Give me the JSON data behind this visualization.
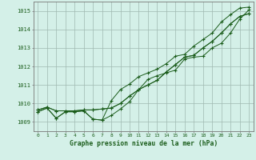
{
  "xlabel": "Graphe pression niveau de la mer (hPa)",
  "bg_color": "#d4f0e8",
  "grid_color": "#a0b8b0",
  "line_color": "#1a5c1a",
  "xlim": [
    -0.5,
    23.5
  ],
  "ylim": [
    1008.5,
    1015.5
  ],
  "yticks": [
    1009,
    1010,
    1011,
    1012,
    1013,
    1014,
    1015
  ],
  "xticks": [
    0,
    1,
    2,
    3,
    4,
    5,
    6,
    7,
    8,
    9,
    10,
    11,
    12,
    13,
    14,
    15,
    16,
    17,
    18,
    19,
    20,
    21,
    22,
    23
  ],
  "series": [
    [
      1009.65,
      1009.8,
      1009.6,
      1009.6,
      1009.6,
      1009.65,
      1009.65,
      1009.7,
      1009.75,
      1010.0,
      1010.4,
      1010.75,
      1011.0,
      1011.25,
      1011.7,
      1012.1,
      1012.5,
      1012.6,
      1013.0,
      1013.35,
      1013.8,
      1014.3,
      1014.7,
      1014.85
    ],
    [
      1009.65,
      1009.8,
      1009.6,
      1009.6,
      1009.6,
      1009.65,
      1009.65,
      1009.7,
      1009.75,
      1010.0,
      1010.4,
      1010.75,
      1011.0,
      1011.25,
      1011.7,
      1012.1,
      1012.5,
      1012.6,
      1013.0,
      1013.35,
      1013.8,
      1014.3,
      1014.7,
      1014.85
    ],
    [
      1009.55,
      1009.75,
      1009.2,
      1009.55,
      1009.55,
      1009.6,
      1009.15,
      1009.1,
      1009.35,
      1009.7,
      1010.1,
      1010.75,
      1011.3,
      1011.5,
      1011.65,
      1011.8,
      1012.4,
      1012.5,
      1012.55,
      1013.0,
      1013.25,
      1013.8,
      1014.55,
      1015.05
    ],
    [
      1009.55,
      1009.75,
      1009.2,
      1009.55,
      1009.55,
      1009.6,
      1009.15,
      1009.1,
      1010.15,
      1010.75,
      1011.05,
      1011.45,
      1011.65,
      1011.85,
      1012.15,
      1012.55,
      1012.65,
      1013.1,
      1013.45,
      1013.8,
      1014.4,
      1014.8,
      1015.15,
      1015.2
    ]
  ]
}
